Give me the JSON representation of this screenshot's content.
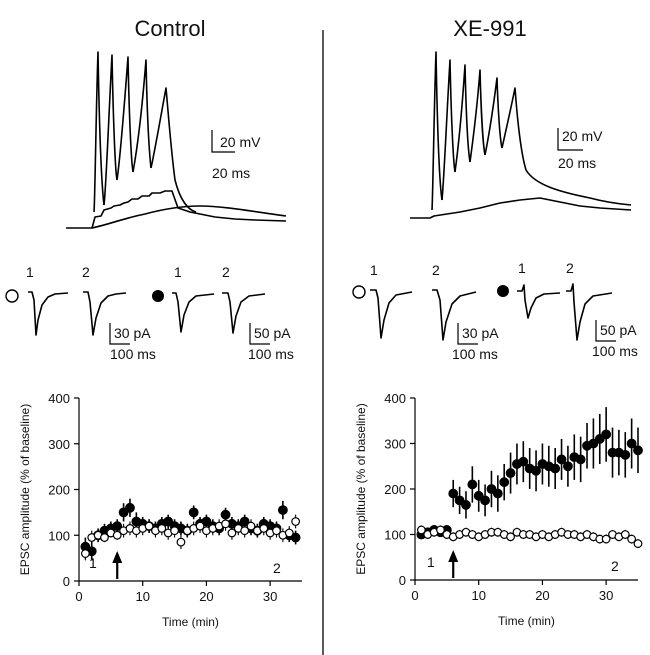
{
  "panels": [
    {
      "id": "control",
      "title": "Control",
      "ap_scale": {
        "voltage": "20 mV",
        "time": "20 ms"
      },
      "epsc_labels": {
        "first": "1",
        "second": "2"
      },
      "epsc_scale_open": {
        "current": "30 pA",
        "time": "100 ms"
      },
      "epsc_scale_filled": {
        "current": "50 pA",
        "time": "100 ms"
      }
    },
    {
      "id": "xe991",
      "title": "XE-991",
      "ap_scale": {
        "voltage": "20 mV",
        "time": "20 ms"
      },
      "epsc_labels": {
        "first": "1",
        "second": "2"
      },
      "epsc_scale_open": {
        "current": "30 pA",
        "time": "100 ms"
      },
      "epsc_scale_filled": {
        "current": "50 pA",
        "time": "100 ms"
      }
    }
  ],
  "chart_data": [
    {
      "type": "scatter",
      "panel": "Control",
      "xlabel": "Time (min)",
      "ylabel": "EPSC amplitude (% of baseline)",
      "xlim": [
        0,
        35
      ],
      "ylim": [
        0,
        400
      ],
      "xticks": [
        0,
        10,
        20,
        30
      ],
      "yticks": [
        0,
        100,
        200,
        300,
        400
      ],
      "annotations": {
        "point1": "1",
        "point2": "2",
        "arrow_at_min": 6
      },
      "series": [
        {
          "marker": "filled",
          "x": [
            1,
            2,
            3,
            4,
            5,
            6,
            7,
            8,
            9,
            10,
            11,
            12,
            13,
            14,
            15,
            16,
            17,
            18,
            19,
            20,
            21,
            22,
            23,
            24,
            25,
            26,
            27,
            28,
            29,
            30,
            31,
            32,
            33,
            34
          ],
          "y": [
            75,
            65,
            100,
            110,
            115,
            120,
            150,
            160,
            130,
            125,
            120,
            115,
            125,
            130,
            120,
            115,
            110,
            150,
            125,
            130,
            120,
            115,
            145,
            125,
            120,
            130,
            115,
            110,
            125,
            120,
            115,
            155,
            100,
            95
          ],
          "err": [
            20,
            20,
            15,
            15,
            15,
            15,
            20,
            20,
            20,
            15,
            15,
            15,
            15,
            15,
            15,
            15,
            15,
            15,
            15,
            15,
            15,
            15,
            15,
            15,
            15,
            15,
            15,
            15,
            15,
            15,
            15,
            20,
            15,
            15
          ]
        },
        {
          "marker": "open",
          "x": [
            1,
            2,
            3,
            4,
            5,
            6,
            7,
            8,
            9,
            10,
            11,
            12,
            13,
            14,
            15,
            16,
            17,
            18,
            19,
            20,
            21,
            22,
            23,
            24,
            25,
            26,
            27,
            28,
            29,
            30,
            31,
            32,
            33,
            34
          ],
          "y": [
            60,
            95,
            100,
            95,
            105,
            100,
            110,
            115,
            110,
            115,
            120,
            110,
            115,
            105,
            110,
            85,
            110,
            115,
            120,
            110,
            115,
            120,
            125,
            105,
            115,
            110,
            120,
            110,
            115,
            105,
            110,
            100,
            105,
            130
          ],
          "err": [
            15,
            15,
            10,
            10,
            10,
            10,
            15,
            15,
            15,
            15,
            15,
            15,
            15,
            15,
            15,
            15,
            15,
            15,
            15,
            15,
            15,
            15,
            15,
            15,
            15,
            15,
            15,
            15,
            15,
            15,
            15,
            15,
            15,
            15
          ]
        }
      ]
    },
    {
      "type": "scatter",
      "panel": "XE-991",
      "xlabel": "Time (min)",
      "ylabel": "EPSC amplitude (% of baseline)",
      "xlim": [
        0,
        35
      ],
      "ylim": [
        0,
        400
      ],
      "xticks": [
        0,
        10,
        20,
        30
      ],
      "yticks": [
        0,
        100,
        200,
        300,
        400
      ],
      "annotations": {
        "point1": "1",
        "point2": "2",
        "arrow_at_min": 6
      },
      "series": [
        {
          "marker": "filled",
          "x": [
            1,
            2,
            3,
            4,
            5,
            6,
            7,
            8,
            9,
            10,
            11,
            12,
            13,
            14,
            15,
            16,
            17,
            18,
            19,
            20,
            21,
            22,
            23,
            24,
            25,
            26,
            27,
            28,
            29,
            30,
            31,
            32,
            33,
            34,
            35
          ],
          "y": [
            100,
            105,
            110,
            105,
            110,
            190,
            175,
            165,
            210,
            185,
            175,
            200,
            190,
            215,
            235,
            255,
            260,
            245,
            240,
            255,
            250,
            245,
            265,
            250,
            270,
            265,
            295,
            300,
            310,
            320,
            280,
            280,
            275,
            300,
            285
          ],
          "err": [
            10,
            10,
            10,
            10,
            10,
            30,
            30,
            30,
            40,
            35,
            35,
            40,
            40,
            40,
            45,
            45,
            45,
            45,
            45,
            45,
            45,
            45,
            45,
            45,
            50,
            50,
            50,
            55,
            55,
            60,
            55,
            50,
            50,
            55,
            50
          ]
        },
        {
          "marker": "open",
          "x": [
            1,
            2,
            3,
            4,
            5,
            6,
            7,
            8,
            9,
            10,
            11,
            12,
            13,
            14,
            15,
            16,
            17,
            18,
            19,
            20,
            21,
            22,
            23,
            24,
            25,
            26,
            27,
            28,
            29,
            30,
            31,
            32,
            33,
            34,
            35
          ],
          "y": [
            110,
            100,
            105,
            110,
            100,
            95,
            100,
            105,
            100,
            95,
            100,
            105,
            105,
            100,
            95,
            105,
            100,
            100,
            95,
            100,
            95,
            100,
            105,
            100,
            100,
            95,
            100,
            95,
            90,
            90,
            100,
            95,
            100,
            90,
            80
          ],
          "err": [
            10,
            10,
            10,
            10,
            10,
            10,
            10,
            10,
            10,
            10,
            10,
            10,
            10,
            10,
            10,
            10,
            10,
            10,
            10,
            10,
            10,
            10,
            10,
            10,
            10,
            10,
            10,
            10,
            10,
            10,
            10,
            10,
            10,
            10,
            10
          ]
        }
      ]
    }
  ]
}
